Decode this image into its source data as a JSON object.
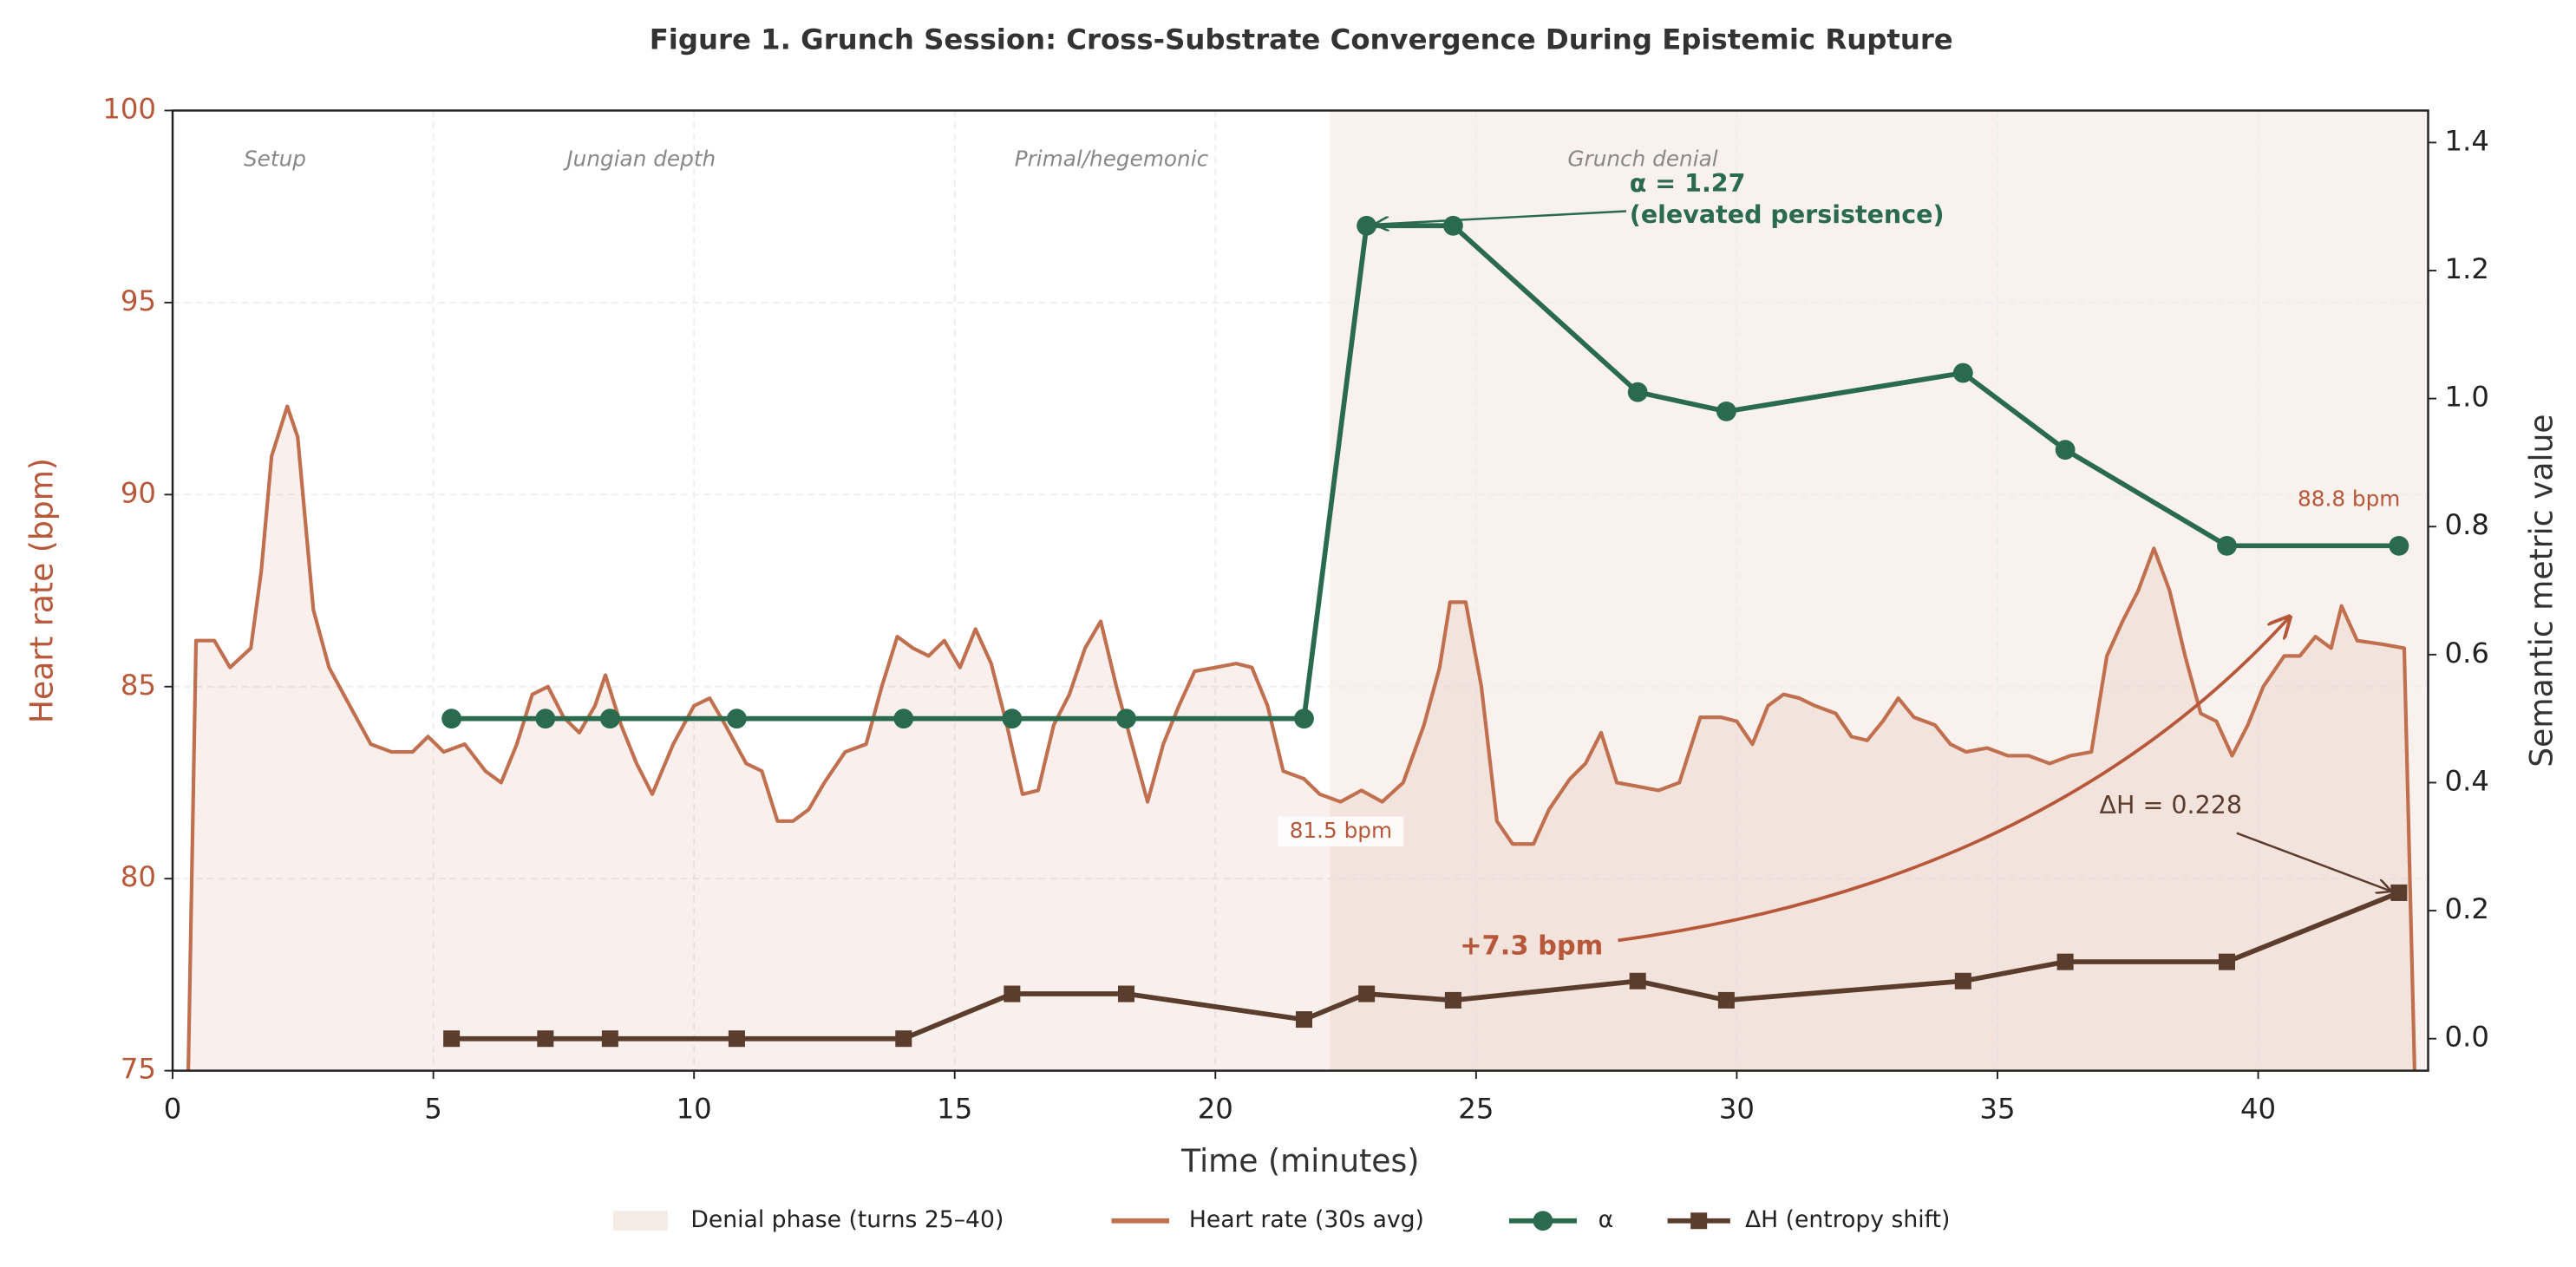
{
  "chart_data": {
    "type": "line",
    "title": "Figure 1. Grunch Session: Cross-Substrate Convergence During Epistemic Rupture",
    "xlabel": "Time (minutes)",
    "ylabel": "Heart rate (bpm)",
    "y2label": "Semantic metric value",
    "xlim": [
      0,
      43.26
    ],
    "ylim": [
      75,
      100
    ],
    "y2lim": [
      -0.05,
      1.45
    ],
    "xticks": [
      0,
      5,
      10,
      15,
      20,
      25,
      30,
      35,
      40
    ],
    "yticks": [
      75,
      80,
      85,
      90,
      95,
      100
    ],
    "y2ticks": [
      {
        "value": 0,
        "label": "0.0"
      },
      0.2,
      0.4,
      0.6,
      0.8,
      {
        "value": 1,
        "label": "1.0"
      },
      1.2,
      1.4
    ],
    "grid": true,
    "legend": "bottom",
    "shade": {
      "name": "Denial phase (turns 25–40)",
      "start": 22.2,
      "color": "#f3e6df"
    },
    "phases": [
      "Setup",
      "Jungian depth",
      "Primal/hegemonic",
      "Grunch denial"
    ],
    "series": [
      {
        "name": "Heart rate (30s avg)",
        "color": "#c0704f",
        "axis": "y",
        "x": [
          0.3,
          0.45,
          0.8,
          1.1,
          1.5,
          1.7,
          1.9,
          2.2,
          2.4,
          2.7,
          3.0,
          3.4,
          3.8,
          4.2,
          4.6,
          4.9,
          5.2,
          5.6,
          6.0,
          6.3,
          6.6,
          6.9,
          7.2,
          7.5,
          7.8,
          8.1,
          8.3,
          8.6,
          8.9,
          9.2,
          9.6,
          10.0,
          10.3,
          10.6,
          11.0,
          11.3,
          11.6,
          11.9,
          12.2,
          12.5,
          12.9,
          13.3,
          13.6,
          13.9,
          14.2,
          14.5,
          14.8,
          15.1,
          15.4,
          15.7,
          16.0,
          16.3,
          16.6,
          16.9,
          17.2,
          17.5,
          17.8,
          18.1,
          18.4,
          18.7,
          19.0,
          19.3,
          19.6,
          20.0,
          20.4,
          20.7,
          21.0,
          21.3,
          21.7,
          22.0,
          22.4,
          22.8,
          23.2,
          23.6,
          24.0,
          24.3,
          24.5,
          24.8,
          25.1,
          25.4,
          25.7,
          26.1,
          26.4,
          26.8,
          27.1,
          27.4,
          27.7,
          28.1,
          28.5,
          28.9,
          29.3,
          29.7,
          30.0,
          30.3,
          30.6,
          30.9,
          31.2,
          31.5,
          31.9,
          32.2,
          32.5,
          32.8,
          33.1,
          33.4,
          33.8,
          34.1,
          34.4,
          34.8,
          35.2,
          35.6,
          36.0,
          36.4,
          36.8,
          37.1,
          37.4,
          37.7,
          38.0,
          38.3,
          38.6,
          38.9,
          39.2,
          39.5,
          39.8,
          40.1,
          40.5,
          40.8,
          41.1,
          41.4,
          41.6,
          41.9,
          42.4,
          42.8,
          43.0
        ],
        "values": [
          75,
          86.2,
          86.2,
          85.5,
          86,
          88,
          91,
          92.3,
          91.5,
          87,
          85.5,
          84.5,
          83.5,
          83.3,
          83.3,
          83.7,
          83.3,
          83.5,
          82.8,
          82.5,
          83.5,
          84.8,
          85,
          84.2,
          83.8,
          84.5,
          85.3,
          84,
          83,
          82.2,
          83.5,
          84.5,
          84.7,
          84,
          83,
          82.8,
          81.5,
          81.5,
          81.8,
          82.5,
          83.3,
          83.5,
          85,
          86.3,
          86,
          85.8,
          86.2,
          85.5,
          86.5,
          85.6,
          84,
          82.2,
          82.3,
          84,
          84.8,
          86,
          86.7,
          85,
          83.5,
          82,
          83.5,
          84.5,
          85.4,
          85.5,
          85.6,
          85.5,
          84.5,
          82.8,
          82.6,
          82.2,
          82,
          82.3,
          82,
          82.5,
          84,
          85.5,
          87.2,
          87.2,
          85,
          81.5,
          80.9,
          80.9,
          81.8,
          82.6,
          83,
          83.8,
          82.5,
          82.4,
          82.3,
          82.5,
          84.2,
          84.2,
          84.1,
          83.5,
          84.5,
          84.8,
          84.7,
          84.5,
          84.3,
          83.7,
          83.6,
          84.1,
          84.7,
          84.2,
          84,
          83.5,
          83.3,
          83.4,
          83.2,
          83.2,
          83,
          83.2,
          83.3,
          85.8,
          86.7,
          87.5,
          88.6,
          87.5,
          85.8,
          84.3,
          84.1,
          83.2,
          84,
          85,
          85.8,
          85.8,
          86.3,
          86,
          87.1,
          86.2,
          86.1,
          86,
          75
        ]
      },
      {
        "name": "α",
        "color": "#2a6a4e",
        "axis": "y2",
        "marker": "circle",
        "x": [
          5.35,
          7.15,
          8.39,
          10.82,
          14.02,
          16.1,
          18.29,
          21.7,
          22.9,
          24.56,
          28.1,
          29.8,
          34.34,
          36.3,
          39.4,
          42.7
        ],
        "values": [
          0.5,
          0.5,
          0.5,
          0.5,
          0.5,
          0.5,
          0.5,
          0.5,
          1.27,
          1.27,
          1.01,
          0.98,
          1.04,
          0.92,
          0.77,
          0.77
        ]
      },
      {
        "name": "ΔH (entropy shift)",
        "color": "#5b3d2e",
        "axis": "y2",
        "marker": "square",
        "x": [
          5.35,
          7.15,
          8.39,
          10.82,
          14.02,
          16.1,
          18.29,
          21.7,
          22.9,
          24.56,
          28.1,
          29.8,
          34.34,
          36.3,
          39.4,
          42.7
        ],
        "values": [
          0,
          0,
          0,
          0,
          0,
          0.07,
          0.07,
          0.03,
          0.07,
          0.06,
          0.09,
          0.06,
          0.09,
          0.12,
          0.12,
          0.228
        ]
      }
    ],
    "annotations": {
      "alpha": [
        "α = 1.27",
        "(elevated persistence)"
      ],
      "hr_low": "81.5 bpm",
      "hr_high": "88.8 bpm",
      "hr_rise": "+7.3 bpm",
      "dh": "ΔH = 0.228"
    }
  }
}
